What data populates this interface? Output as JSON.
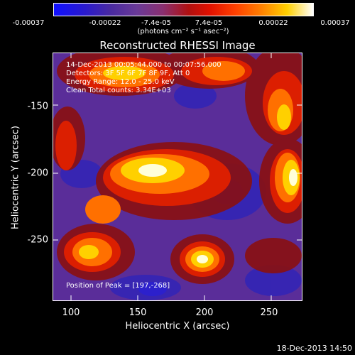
{
  "colorbar": {
    "ticks": [
      "-0.00037",
      "-0.00022",
      "-7.4e-05",
      "7.4e-05",
      "0.00022",
      "0.00037"
    ],
    "unit_label": "(photons cm⁻² s⁻¹ asec⁻²)"
  },
  "title": "Reconstructed RHESSI Image",
  "info": {
    "time_range": "14-Dec-2013 00:05:44.000 to 00:07:56.000",
    "detectors": "Detectors: 3F 5F 6F 7F 8F 9F, Att 0",
    "energy": "Energy Range: 12.0 - 25.0 keV",
    "clean": "Clean    Total counts: 3.34E+03",
    "peak": "Position of Peak = [197,-268]"
  },
  "axes": {
    "x_label": "Heliocentric X (arcsec)",
    "y_label": "Heliocentric Y (arcsec)",
    "x_ticks": [
      "100",
      "150",
      "200",
      "250"
    ],
    "y_ticks": [
      "-150",
      "-200",
      "-250"
    ]
  },
  "timestamp": "18-Dec-2013 14:50"
}
